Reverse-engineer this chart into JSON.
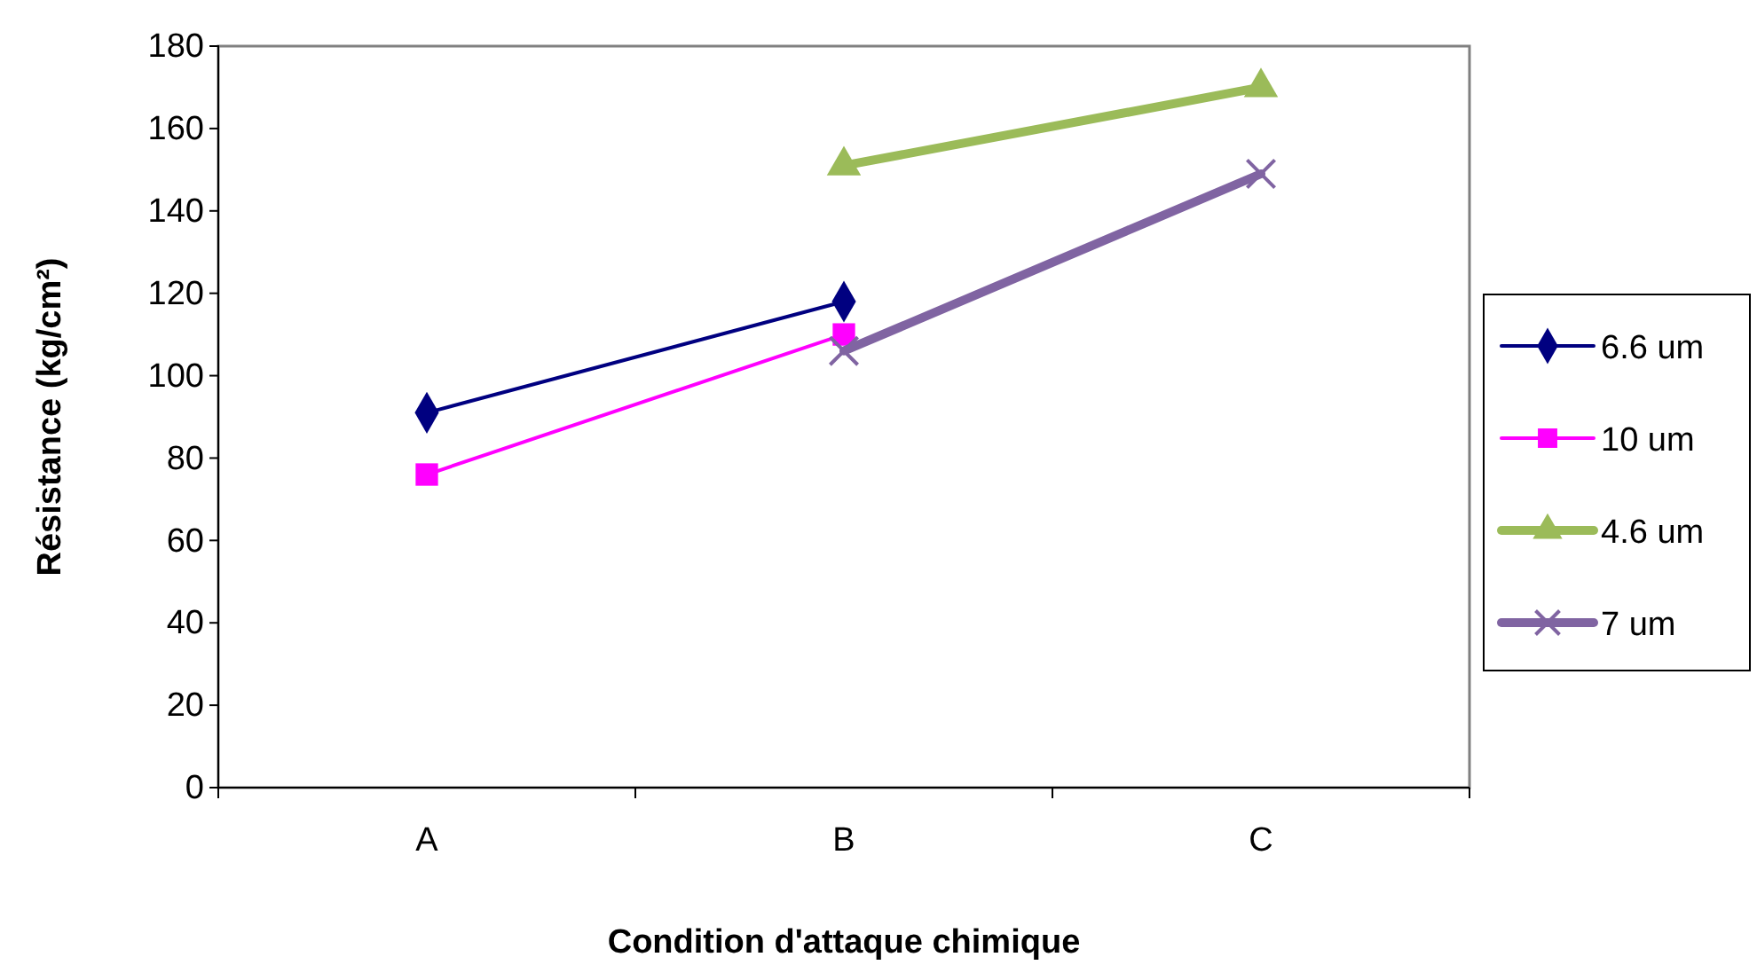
{
  "chart_data": {
    "type": "line",
    "xlabel": "Condition d'attaque chimique",
    "ylabel": "Résistance (kg/cm²)",
    "categories": [
      "A",
      "B",
      "C"
    ],
    "ylim": [
      0,
      180
    ],
    "yticks": [
      0,
      20,
      40,
      60,
      80,
      100,
      120,
      140,
      160,
      180
    ],
    "grid": false,
    "legend": "right",
    "series": [
      {
        "name": "6.6 um",
        "color": "#000080",
        "marker": "diamond",
        "values": [
          91,
          118,
          null
        ]
      },
      {
        "name": "10 um",
        "color": "#ff00ff",
        "marker": "square",
        "values": [
          76,
          110,
          null
        ]
      },
      {
        "name": "4.6 um",
        "color": "#9bbb59",
        "marker": "triangle",
        "values": [
          null,
          151,
          170
        ]
      },
      {
        "name": "7 um",
        "color": "#8064a2",
        "marker": "cross",
        "values": [
          null,
          106,
          149
        ]
      }
    ]
  }
}
